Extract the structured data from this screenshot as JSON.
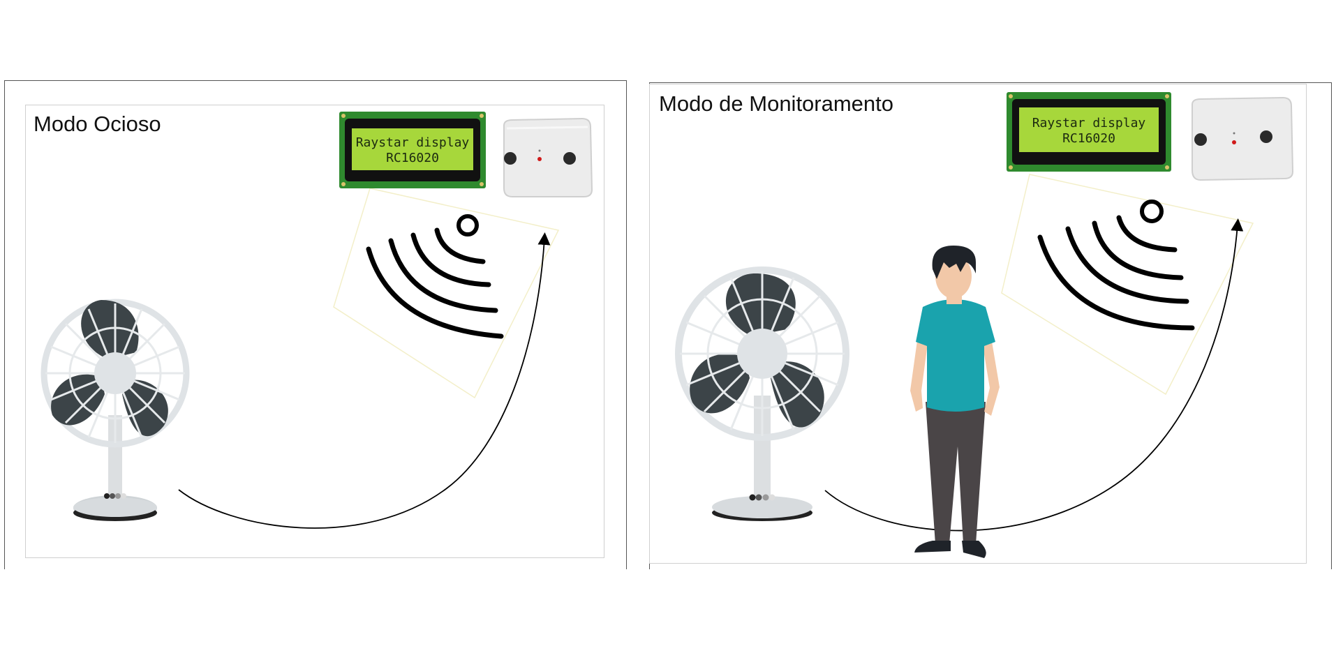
{
  "panels": [
    {
      "title": "Modo Ocioso",
      "lcd_line1": "Raystar display",
      "lcd_line2": "RC16020"
    },
    {
      "title": "Modo de Monitoramento",
      "lcd_line1": "Raystar display",
      "lcd_line2": "RC16020"
    }
  ],
  "colors": {
    "lcd_green": "#a7d73b",
    "pcb_green": "#2f8a2e",
    "fan_blade": "#3c4448",
    "person_shirt": "#1aa3ad",
    "person_pants": "#4a4547",
    "person_skin": "#f2c8a8",
    "person_hair": "#1f2329"
  }
}
